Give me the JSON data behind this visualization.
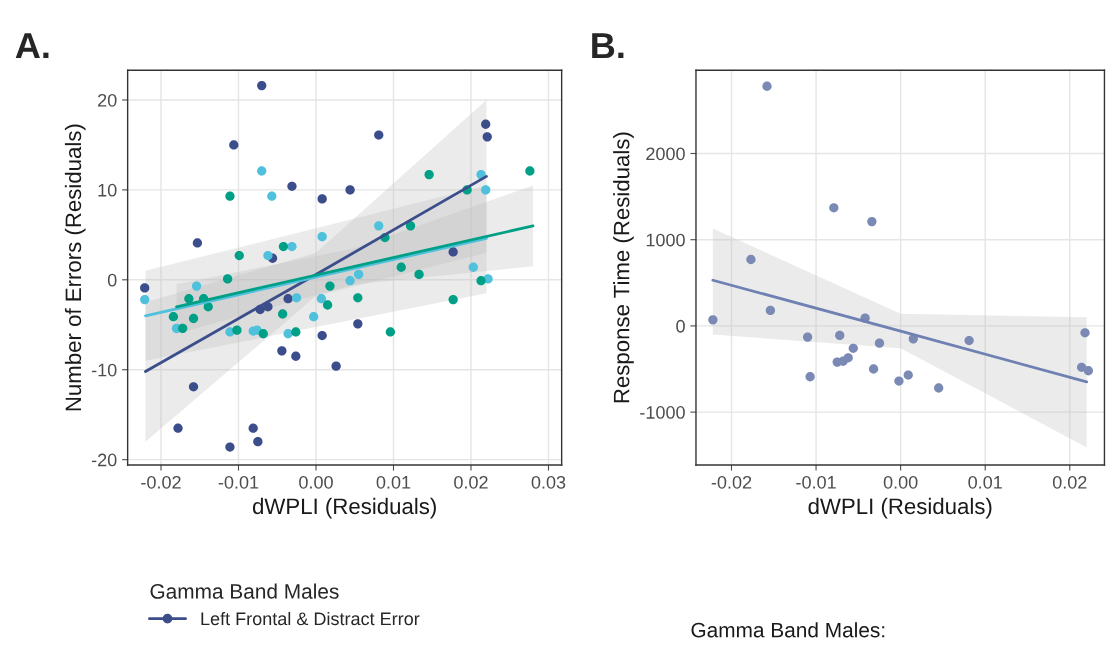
{
  "chart_data": [
    {
      "type": "scatter",
      "title": "A.",
      "xlabel": "dWPLI (Residuals)",
      "ylabel": "Number of Errors (Residuals)",
      "legend_title": "Gamma Band Males",
      "legend": "bottom",
      "grid": true,
      "marker": "circle",
      "xlim": [
        -0.0243,
        0.0317
      ],
      "ylim": [
        -20.6,
        23.3
      ],
      "xticks": [
        {
          "value": -0.02,
          "label": "-0.02"
        },
        {
          "value": -0.01,
          "label": "-0.01"
        },
        {
          "value": 0,
          "label": "0.00"
        },
        {
          "value": 0.01,
          "label": "0.01"
        },
        {
          "value": 0.02,
          "label": "0.02"
        },
        {
          "value": 0.03,
          "label": "0.03"
        }
      ],
      "yticks": [
        {
          "value": -20,
          "label": "-20"
        },
        {
          "value": -10,
          "label": "-10"
        },
        0,
        10,
        20
      ],
      "series": [
        {
          "type": "line",
          "marker": "none",
          "color": "#3b4d8a",
          "x": [
            -0.022,
            0,
            0.022
          ],
          "values": [
            -10.2,
            0.6,
            11.5
          ],
          "lower": [
            -18,
            -1.8,
            3
          ],
          "upper": [
            -2.5,
            3,
            20
          ]
        },
        {
          "type": "line",
          "marker": "none",
          "color": "#4fc1dc",
          "x": [
            -0.022,
            0.022
          ],
          "values": [
            -4.0,
            4.6
          ],
          "lower": [
            -9,
            -1.5
          ],
          "upper": [
            1,
            10.5
          ]
        },
        {
          "type": "line",
          "marker": "none",
          "color": "#00a087",
          "x": [
            -0.018,
            0.005,
            0.028
          ],
          "values": [
            -3.0,
            1.5,
            6.0
          ],
          "lower": [
            -6,
            -0.5,
            1.5
          ],
          "upper": [
            -0.5,
            3.5,
            10.5
          ]
        },
        {
          "name": "Left Frontal & Distract Error",
          "color": "#3b4d8a",
          "x": [
            -0.007,
            -0.0106,
            0.0219,
            0.0221,
            0.0081,
            -0.0031,
            0.0044,
            0.0008,
            -0.0153,
            -0.0056,
            0.0177,
            -0.0221,
            -0.0072,
            -0.0062,
            -0.0036,
            0.0054,
            0.0008,
            -0.0044,
            -0.0026,
            0.0026,
            -0.0158,
            -0.0178,
            -0.0081,
            -0.0075,
            -0.0111
          ],
          "values": [
            21.6,
            15.0,
            17.3,
            15.9,
            16.1,
            10.4,
            10.0,
            9.0,
            4.1,
            2.4,
            3.1,
            -0.9,
            -3.3,
            -3.0,
            -2.1,
            -4.9,
            -6.2,
            -7.9,
            -8.5,
            -9.6,
            -11.9,
            -16.5,
            -16.5,
            -18.0,
            -18.6
          ]
        },
        {
          "color": "#4fc1dc",
          "x": [
            -0.007,
            -0.0057,
            0.0213,
            0.0219,
            0.0081,
            0.0008,
            -0.0031,
            -0.0062,
            -0.0154,
            0.0044,
            0.0055,
            0.0203,
            0.0222,
            -0.0221,
            -0.018,
            -0.0025,
            0.0007,
            -0.0003,
            -0.0111,
            -0.0081,
            -0.0076,
            -0.0036
          ],
          "values": [
            12.1,
            9.3,
            11.7,
            10.0,
            6.0,
            4.8,
            3.7,
            2.7,
            -0.7,
            -0.1,
            0.6,
            1.4,
            0.1,
            -2.2,
            -5.4,
            -2.0,
            -2.1,
            -4.1,
            -5.8,
            -5.7,
            -5.6,
            -6.0
          ]
        },
        {
          "color": "#00a087",
          "x": [
            -0.0111,
            0.0146,
            0.0276,
            0.0195,
            0.0122,
            0.0089,
            -0.0042,
            -0.0099,
            -0.0114,
            0.011,
            0.0133,
            0.0213,
            0.0018,
            -0.0164,
            -0.0145,
            -0.0139,
            -0.0184,
            -0.0158,
            -0.0172,
            0.0015,
            0.0054,
            -0.0043,
            -0.0102,
            -0.0068,
            -0.0026,
            0.0096,
            0.0177
          ],
          "values": [
            9.3,
            11.7,
            12.1,
            10.0,
            6.0,
            4.7,
            3.7,
            2.7,
            0.1,
            1.4,
            0.6,
            -0.1,
            -0.7,
            -2.1,
            -2.1,
            -3.0,
            -4.1,
            -4.3,
            -5.4,
            -2.8,
            -2.0,
            -3.8,
            -5.6,
            -6.0,
            -5.8,
            -5.8,
            -2.2
          ]
        }
      ]
    },
    {
      "type": "scatter",
      "title": "B.",
      "xlabel": "dWPLI (Residuals)",
      "ylabel": "Response Time (Residuals)",
      "grid": true,
      "marker": "circle",
      "annotations": [
        "Gamma Band Males:"
      ],
      "xlim": [
        -0.0242,
        0.0241
      ],
      "ylim": [
        -1614,
        2965
      ],
      "xticks": [
        {
          "value": -0.02,
          "label": "-0.02"
        },
        {
          "value": -0.01,
          "label": "-0.01"
        },
        {
          "value": 0,
          "label": "0.00"
        },
        {
          "value": 0.01,
          "label": "0.01"
        },
        {
          "value": 0.02,
          "label": "0.02"
        }
      ],
      "yticks": [
        {
          "value": -1000,
          "label": "-1000"
        },
        0,
        1000,
        2000
      ],
      "series": [
        {
          "type": "line",
          "marker": "none",
          "color": "#6f80b2",
          "x": [
            -0.0222,
            0,
            0.022
          ],
          "values": [
            530,
            -60,
            -650
          ],
          "lower": [
            -100,
            -260,
            -1410
          ],
          "upper": [
            1130,
            140,
            100
          ]
        },
        {
          "color": "#7a8ab5",
          "x": [
            -0.0158,
            -0.0222,
            -0.0177,
            -0.0154,
            -0.0079,
            -0.0034,
            -0.011,
            -0.0107,
            -0.0072,
            -0.0075,
            -0.0068,
            -0.0062,
            -0.0056,
            -0.0042,
            -0.0025,
            -0.0032,
            -0.0002,
            0.0009,
            0.0015,
            0.0045,
            0.0081,
            0.0218,
            0.0214,
            0.0222
          ],
          "values": [
            2780,
            70,
            770,
            180,
            1370,
            1210,
            -130,
            -590,
            -110,
            -420,
            -410,
            -370,
            -260,
            90,
            -200,
            -500,
            -640,
            -570,
            -150,
            -720,
            -170,
            -80,
            -480,
            -520
          ]
        }
      ]
    }
  ]
}
